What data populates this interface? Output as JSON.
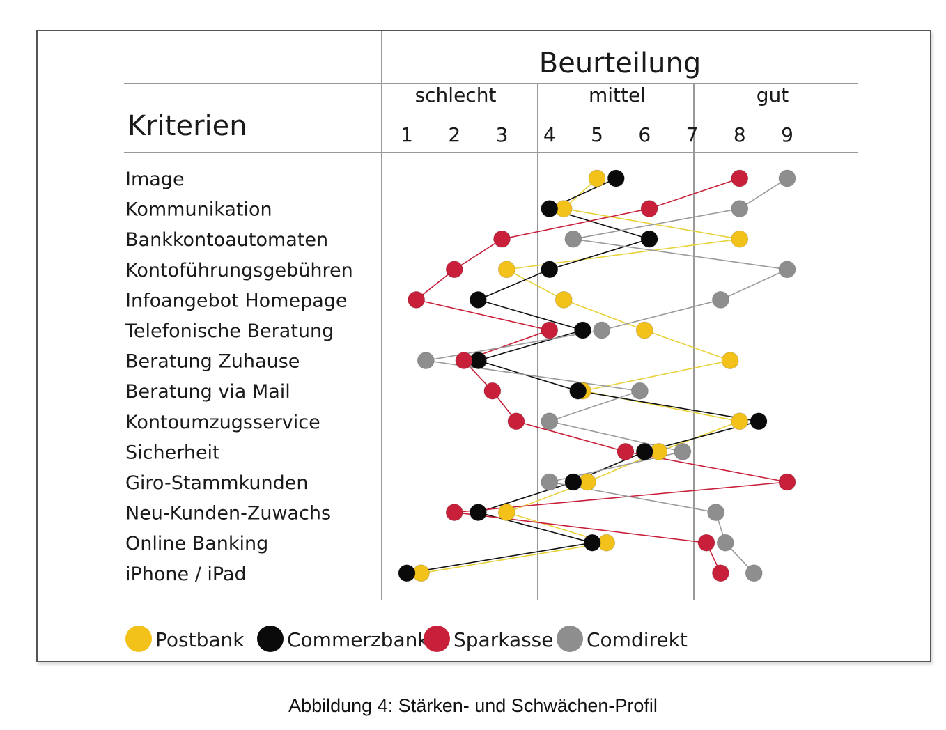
{
  "caption": "Abbildung 4: Stärken- und Schwächen-Profil",
  "chart_data": {
    "type": "line",
    "title": "Beurteilung",
    "row_header": "Kriterien",
    "scale_groups": [
      "schlecht",
      "mittel",
      "gut"
    ],
    "x_ticks": [
      "1",
      "2",
      "3",
      "4",
      "5",
      "6",
      "7",
      "8",
      "9"
    ],
    "xlim": [
      1,
      9
    ],
    "criteria": [
      "Image",
      "Kommunikation",
      "Bankkontoautomaten",
      "Kontoführungsgebühren",
      "Infoangebot Homepage",
      "Telefonische Beratung",
      "Beratung Zuhause",
      "Beratung via Mail",
      "Kontoumzugsservice",
      "Sicherheit",
      "Giro-Stammkunden",
      "Neu-Kunden-Zuwachs",
      "Online Banking",
      "iPhone / iPad"
    ],
    "series": [
      {
        "name": "Postbank",
        "color": "#f2c21b",
        "line_color": "#e8d23a",
        "values": [
          5.0,
          4.3,
          8.0,
          3.1,
          4.3,
          6.0,
          7.8,
          4.7,
          8.0,
          6.3,
          4.8,
          3.1,
          5.2,
          1.3
        ]
      },
      {
        "name": "Commerzbank",
        "color": "#0a0a0a",
        "line_color": "#111111",
        "values": [
          5.4,
          4.0,
          6.1,
          4.0,
          2.5,
          4.7,
          2.5,
          4.6,
          8.4,
          6.0,
          4.5,
          2.5,
          4.9,
          1.0
        ]
      },
      {
        "name": "Sparkasse",
        "color": "#c8203a",
        "line_color": "#c8203a",
        "values": [
          8.0,
          6.1,
          3.0,
          2.0,
          1.2,
          4.0,
          2.2,
          2.8,
          3.3,
          5.6,
          9.0,
          2.0,
          7.3,
          7.6
        ]
      },
      {
        "name": "Comdirekt",
        "color": "#8e8e8e",
        "line_color": "#9a9a9a",
        "values": [
          9.0,
          8.0,
          4.5,
          9.0,
          7.6,
          5.1,
          1.4,
          5.9,
          4.0,
          6.8,
          4.0,
          7.5,
          7.7,
          8.3
        ]
      }
    ],
    "legend_position": "bottom"
  }
}
